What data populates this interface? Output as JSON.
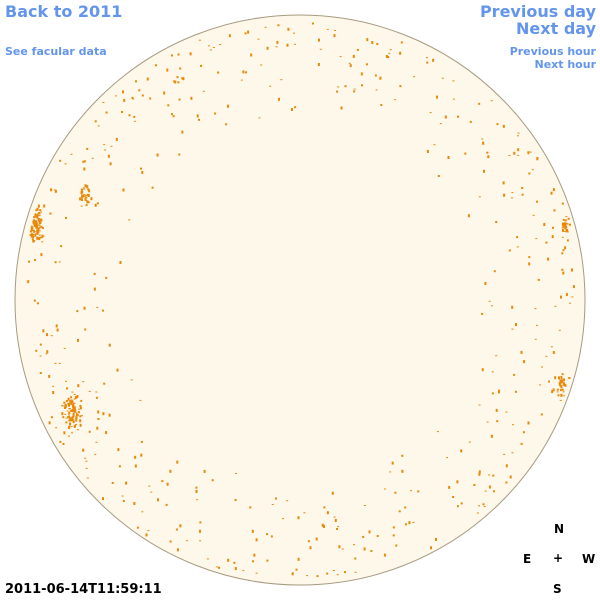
{
  "header": {
    "back_link": "Back to 2011",
    "facular_link": "See facular data"
  },
  "navigation": {
    "previous_day": "Previous day",
    "next_day": "Next day",
    "previous_hour": "Previous hour",
    "next_hour": "Next hour"
  },
  "timestamp": "2011-06-14T11:59:11",
  "compass": {
    "north": "N",
    "east": "E",
    "center": "+",
    "west": "W",
    "south": "S"
  }
}
